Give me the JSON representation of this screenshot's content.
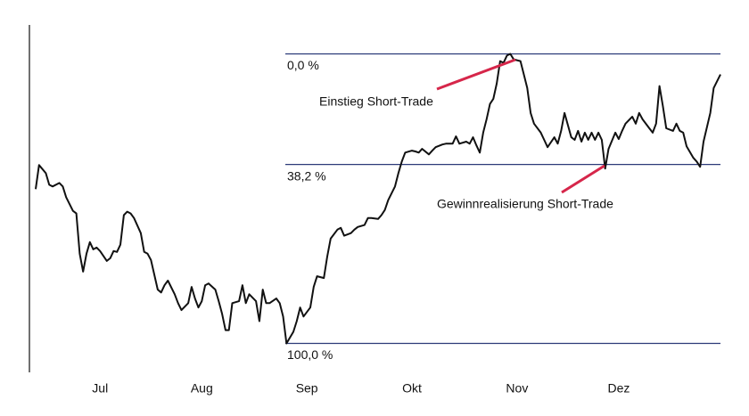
{
  "chart_data": {
    "type": "line",
    "x": [
      0,
      1,
      3,
      4,
      5,
      7,
      8,
      9,
      11,
      12,
      13,
      14,
      15,
      16,
      17,
      18,
      19,
      21,
      22,
      23,
      24,
      25,
      26,
      27,
      28,
      29,
      31,
      32,
      33,
      34,
      36,
      37,
      38,
      39,
      41,
      42,
      43,
      45,
      46,
      47,
      48,
      49,
      50,
      51,
      53,
      54,
      55,
      56,
      57,
      58,
      60,
      61,
      62,
      63,
      65,
      66,
      67,
      68,
      69,
      71,
      72,
      73,
      74,
      76,
      77,
      78,
      79,
      81,
      82,
      83,
      85,
      86,
      87,
      89,
      90,
      91,
      93,
      94,
      95,
      97,
      98,
      99,
      101,
      102,
      103,
      104,
      106,
      107,
      108,
      109,
      111,
      112,
      113,
      114,
      116,
      117,
      118,
      120,
      121,
      123,
      124,
      125,
      127,
      128,
      129,
      130,
      131,
      132,
      133,
      134,
      135,
      136,
      137,
      138,
      139,
      140,
      141,
      143,
      144,
      145,
      146,
      147,
      149,
      150,
      151,
      153,
      154,
      155,
      156,
      158,
      159,
      160,
      161,
      162,
      163,
      164,
      165,
      166,
      167,
      168,
      169,
      171,
      172,
      173,
      174,
      176,
      177,
      178,
      179,
      181,
      182,
      183,
      184,
      185,
      186,
      188,
      189,
      190,
      191,
      192,
      194,
      195,
      196,
      197,
      199,
      200,
      202
    ],
    "values": [
      46.7,
      38.4,
      41.2,
      45.2,
      45.8,
      44.6,
      45.8,
      49.5,
      54.2,
      55.1,
      69.0,
      75.2,
      69.0,
      65.0,
      67.5,
      66.9,
      68.1,
      71.5,
      70.6,
      68.1,
      68.4,
      65.9,
      55.7,
      54.5,
      55.1,
      56.7,
      61.9,
      68.4,
      69.0,
      71.2,
      81.4,
      82.4,
      79.9,
      78.3,
      83.0,
      86.1,
      88.5,
      86.1,
      80.5,
      84.5,
      87.6,
      85.4,
      79.9,
      79.3,
      81.4,
      85.4,
      89.8,
      95.4,
      95.4,
      86.1,
      85.4,
      79.9,
      86.1,
      83.0,
      85.4,
      92.3,
      81.4,
      86.1,
      86.1,
      84.5,
      86.1,
      90.7,
      100.0,
      96.0,
      92.3,
      87.6,
      90.7,
      87.6,
      80.5,
      76.8,
      77.4,
      70.0,
      63.8,
      60.7,
      60.1,
      62.8,
      61.9,
      60.7,
      59.8,
      59.1,
      56.7,
      56.7,
      57.0,
      55.7,
      53.9,
      50.5,
      45.8,
      41.2,
      37.2,
      34.1,
      33.4,
      33.7,
      34.1,
      32.8,
      34.7,
      33.4,
      32.2,
      31.3,
      31.0,
      31.0,
      28.5,
      31.0,
      30.3,
      31.0,
      28.8,
      31.6,
      34.1,
      27.2,
      22.6,
      17.3,
      15.5,
      10.2,
      2.5,
      3.1,
      0.6,
      0.0,
      1.9,
      2.5,
      7.1,
      11.8,
      20.4,
      24.1,
      27.2,
      29.7,
      32.2,
      28.8,
      31.0,
      26.6,
      20.4,
      28.8,
      29.7,
      26.6,
      30.3,
      27.2,
      29.7,
      27.2,
      29.7,
      27.2,
      29.7,
      39.6,
      32.8,
      27.2,
      29.4,
      26.6,
      24.1,
      21.7,
      24.1,
      20.4,
      22.6,
      25.7,
      27.2,
      24.1,
      11.1,
      18.0,
      25.7,
      26.6,
      24.1,
      26.6,
      27.2,
      31.9,
      35.9,
      37.2,
      39.0,
      30.3,
      20.4,
      11.8,
      7.1
    ],
    "color": "#111111",
    "xlim": [
      0,
      202
    ],
    "xticks": [
      {
        "value": 19,
        "label": "Jul"
      },
      {
        "value": 49,
        "label": "Aug"
      },
      {
        "value": 80,
        "label": "Sep"
      },
      {
        "value": 111,
        "label": "Okt"
      },
      {
        "value": 142,
        "label": "Nov"
      },
      {
        "value": 172,
        "label": "Dez"
      }
    ],
    "ylim": [
      110,
      -10
    ],
    "levels": [
      {
        "value": 0,
        "label": "0,0 %"
      },
      {
        "value": 38.2,
        "label": "38,2 %"
      },
      {
        "value": 100,
        "label": "100,0 %"
      }
    ],
    "level_color": "#2b3a78",
    "annotation_color": "#d6264a",
    "annotations": [
      "Einstieg Short-Trade",
      "Gewinnrealisierung Short-Trade"
    ]
  }
}
